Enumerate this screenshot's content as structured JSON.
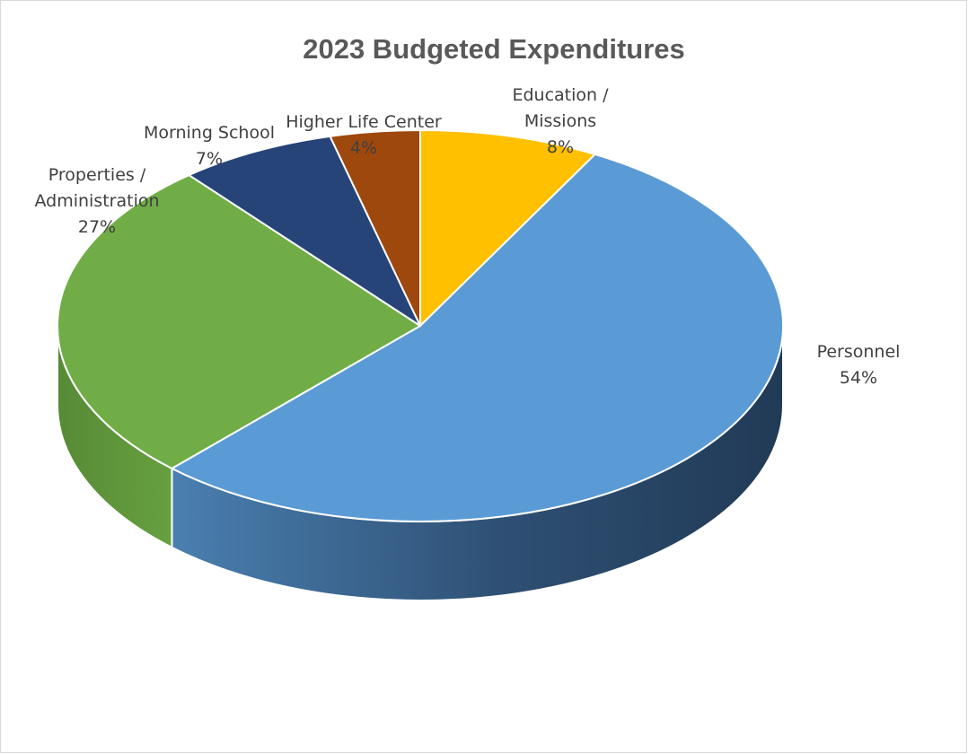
{
  "chart_data": {
    "type": "pie",
    "title": "2023 Budgeted Expenditures",
    "categories": [
      "Education / Missions",
      "Personnel",
      "Properties / Administration",
      "Morning School",
      "Higher Life Center"
    ],
    "values": [
      8,
      54,
      27,
      7,
      4
    ],
    "unit": "%",
    "labels": [
      {
        "lines": [
          "Education /",
          "Missions"
        ],
        "value": "8%"
      },
      {
        "lines": [
          "Personnel"
        ],
        "value": "54%"
      },
      {
        "lines": [
          "Properties /",
          "Administration"
        ],
        "value": "27%"
      },
      {
        "lines": [
          "Morning School"
        ],
        "value": "7%"
      },
      {
        "lines": [
          "Higher Life Center"
        ],
        "value": "4%"
      }
    ],
    "colors": [
      "#ffc000",
      "#5b9bd5",
      "#70ad47",
      "#264478",
      "#9e480e"
    ],
    "side_colors": [
      "#b38600",
      "#2b4f73",
      "#5b8f3a",
      "#1b3058",
      "#6d320a"
    ],
    "legend": "none",
    "style": "3d"
  }
}
